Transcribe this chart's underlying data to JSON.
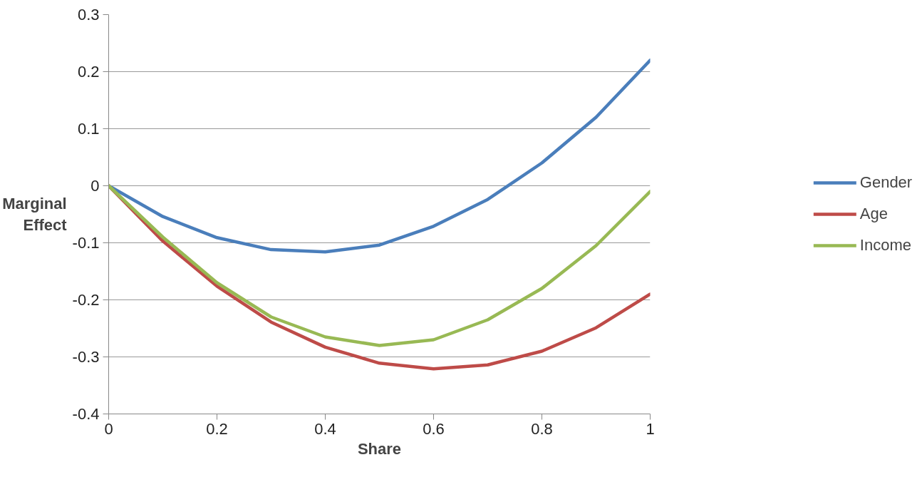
{
  "chart_data": {
    "type": "line",
    "xlabel": "Share",
    "ylabel": "Marginal Effect",
    "x": [
      0,
      0.1,
      0.2,
      0.3,
      0.4,
      0.5,
      0.6,
      0.7,
      0.8,
      0.9,
      1
    ],
    "series": [
      {
        "name": "Gender",
        "color": "#4a7ebb",
        "values": [
          0,
          -0.054,
          -0.091,
          -0.112,
          -0.116,
          -0.104,
          -0.071,
          -0.024,
          0.04,
          0.12,
          0.22
        ]
      },
      {
        "name": "Age",
        "color": "#be4b48",
        "values": [
          0,
          -0.097,
          -0.176,
          -0.239,
          -0.283,
          -0.311,
          -0.321,
          -0.314,
          -0.29,
          -0.249,
          -0.19
        ]
      },
      {
        "name": "Income",
        "color": "#98b954",
        "values": [
          0,
          -0.09,
          -0.17,
          -0.23,
          -0.265,
          -0.28,
          -0.27,
          -0.235,
          -0.18,
          -0.105,
          -0.01
        ]
      }
    ],
    "xlim": [
      0,
      1
    ],
    "ylim": [
      -0.4,
      0.3
    ],
    "xticks": [
      0,
      0.2,
      0.4,
      0.6,
      0.8,
      1
    ],
    "yticks": [
      -0.4,
      -0.3,
      -0.2,
      -0.1,
      0,
      0.1,
      0.2,
      0.3
    ],
    "grid": "y",
    "legend": "right",
    "marker": "none",
    "line_style": "solid"
  }
}
